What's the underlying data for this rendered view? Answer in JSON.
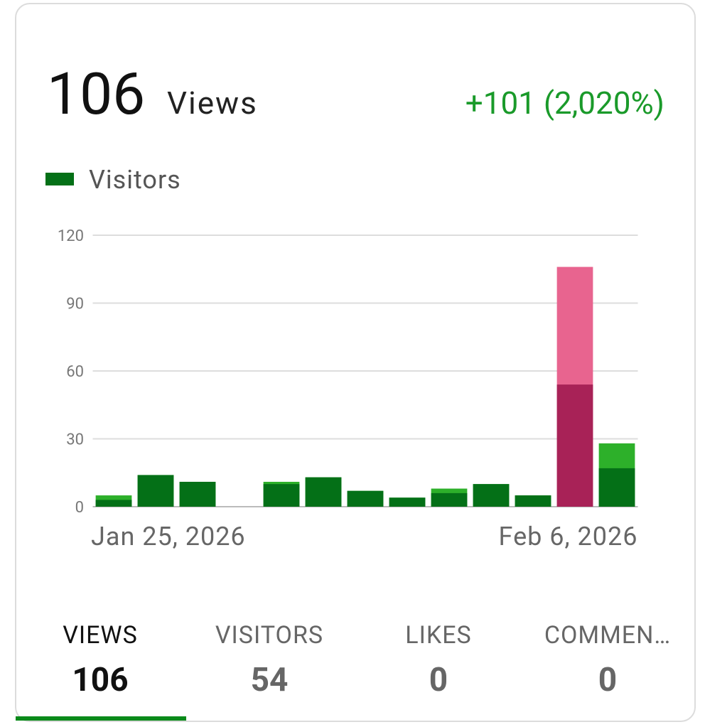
{
  "header": {
    "total": 106,
    "unit": "Views",
    "change": "+101 (2,020%)"
  },
  "chart_data": {
    "type": "bar",
    "categories": [
      "Jan 25, 2026",
      null,
      null,
      null,
      null,
      null,
      null,
      null,
      null,
      null,
      null,
      null,
      "Feb 6, 2026"
    ],
    "series": [
      {
        "color": "#2db02a",
        "highlight_color": "#e8648f",
        "values": [
          5,
          14,
          11,
          0,
          11,
          13,
          7,
          4,
          8,
          10,
          5,
          106,
          28
        ]
      },
      {
        "name": "Visitors",
        "color": "#047017",
        "highlight_color": "#a82257",
        "values": [
          3,
          14,
          11,
          0,
          10,
          13,
          7,
          4,
          6,
          10,
          5,
          54,
          17
        ]
      }
    ],
    "highlight_index": 11,
    "ylim": [
      0,
      120
    ],
    "yticks": [
      0,
      30,
      60,
      90,
      120
    ],
    "grid": true,
    "legend": "top-left"
  },
  "tabs": [
    {
      "label": "VIEWS",
      "value": 106
    },
    {
      "label": "VISITORS",
      "value": 54
    },
    {
      "label": "LIKES",
      "value": 0
    },
    {
      "label": "COMMEN…",
      "value": 0
    }
  ],
  "active_tab": 0
}
